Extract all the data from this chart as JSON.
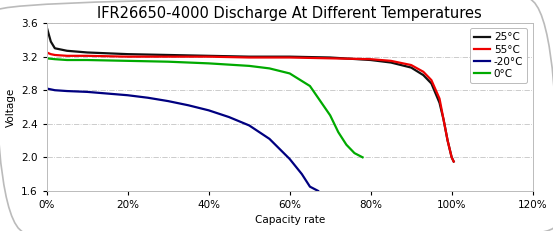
{
  "title": "IFR26650-4000 Discharge At Different Temperatures",
  "xlabel": "Capacity rate",
  "ylabel": "Voltage",
  "xlim": [
    0,
    1.2
  ],
  "ylim": [
    1.6,
    3.6
  ],
  "xticks": [
    0,
    0.2,
    0.4,
    0.6,
    0.8,
    1.0,
    1.2
  ],
  "yticks": [
    1.6,
    2.0,
    2.4,
    2.8,
    3.2,
    3.6
  ],
  "background_color": "#ffffff",
  "border_color": "#aaaaaa",
  "grid_color": "#aaaaaa",
  "title_fontsize": 10.5,
  "axis_label_fontsize": 7.5,
  "tick_fontsize": 7.5,
  "legend_fontsize": 7.5,
  "series": [
    {
      "label": "25°C",
      "color": "#111111",
      "lw": 1.6,
      "x": [
        0.0,
        0.01,
        0.02,
        0.05,
        0.1,
        0.2,
        0.3,
        0.4,
        0.5,
        0.6,
        0.7,
        0.8,
        0.85,
        0.9,
        0.93,
        0.95,
        0.97,
        0.98,
        0.99,
        1.0,
        1.005
      ],
      "y": [
        3.55,
        3.38,
        3.3,
        3.27,
        3.25,
        3.23,
        3.22,
        3.21,
        3.2,
        3.2,
        3.19,
        3.16,
        3.13,
        3.07,
        2.98,
        2.88,
        2.65,
        2.45,
        2.2,
        2.0,
        1.95
      ]
    },
    {
      "label": "55°C",
      "color": "#ee0000",
      "lw": 1.6,
      "x": [
        0.0,
        0.01,
        0.02,
        0.05,
        0.1,
        0.2,
        0.3,
        0.4,
        0.5,
        0.6,
        0.7,
        0.8,
        0.85,
        0.9,
        0.93,
        0.95,
        0.97,
        0.98,
        0.99,
        1.0,
        1.005
      ],
      "y": [
        3.25,
        3.23,
        3.22,
        3.21,
        3.21,
        3.2,
        3.2,
        3.2,
        3.19,
        3.19,
        3.18,
        3.17,
        3.15,
        3.1,
        3.02,
        2.92,
        2.7,
        2.45,
        2.2,
        2.0,
        1.95
      ]
    },
    {
      "label": "-20°C",
      "color": "#000080",
      "lw": 1.6,
      "x": [
        0.0,
        0.02,
        0.05,
        0.1,
        0.15,
        0.2,
        0.25,
        0.3,
        0.35,
        0.4,
        0.45,
        0.5,
        0.55,
        0.6,
        0.63,
        0.65,
        0.67
      ],
      "y": [
        2.82,
        2.8,
        2.79,
        2.78,
        2.76,
        2.74,
        2.71,
        2.67,
        2.62,
        2.56,
        2.48,
        2.38,
        2.22,
        1.98,
        1.8,
        1.65,
        1.6
      ]
    },
    {
      "label": "0°C",
      "color": "#00aa00",
      "lw": 1.6,
      "x": [
        0.0,
        0.02,
        0.05,
        0.1,
        0.2,
        0.3,
        0.4,
        0.5,
        0.55,
        0.6,
        0.65,
        0.7,
        0.72,
        0.74,
        0.76,
        0.78
      ],
      "y": [
        3.18,
        3.17,
        3.16,
        3.16,
        3.15,
        3.14,
        3.12,
        3.09,
        3.06,
        3.0,
        2.85,
        2.5,
        2.3,
        2.15,
        2.05,
        2.0
      ]
    }
  ]
}
